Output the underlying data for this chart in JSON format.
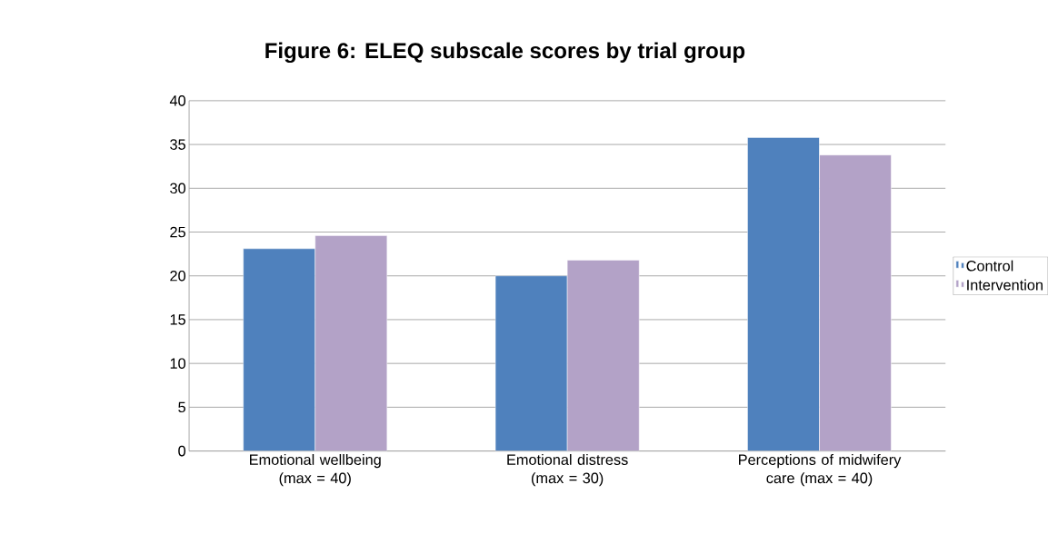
{
  "chart_data": {
    "type": "bar",
    "title": "Figure 6: ELEQ subscale scores by trial group",
    "categories": [
      "Emotional wellbeing (max = 40)",
      "Emotional distress (max = 30)",
      "Perceptions of midwifery care (max = 40)"
    ],
    "series": [
      {
        "name": "Control",
        "color": "#4f81bd",
        "values": [
          23.1,
          20.0,
          35.8
        ]
      },
      {
        "name": "Intervention",
        "color": "#b3a2c7",
        "values": [
          24.6,
          21.8,
          33.8
        ]
      }
    ],
    "ylim": [
      0,
      40
    ],
    "yticks": [
      0,
      5,
      10,
      15,
      20,
      25,
      30,
      35,
      40
    ],
    "grid": "y",
    "legend": "right"
  }
}
